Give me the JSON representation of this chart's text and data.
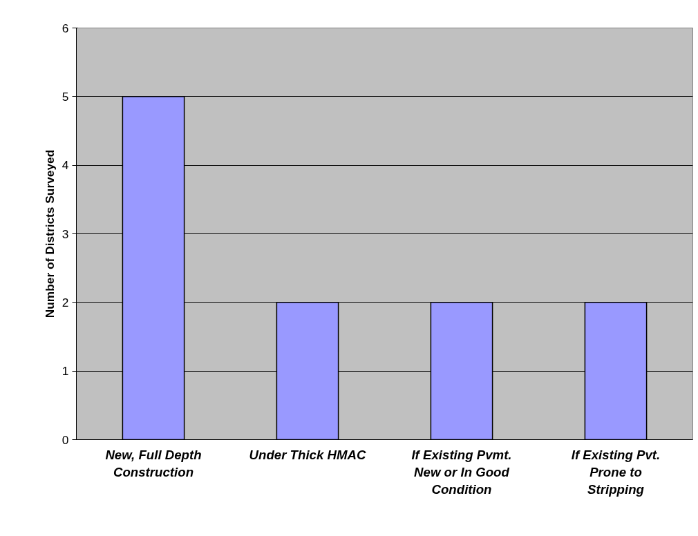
{
  "chart_data": {
    "type": "bar",
    "ylabel": "Number of Districts Surveyed",
    "categories": [
      "New, Full Depth Construction",
      "Under Thick HMAC",
      "If Existing Pvmt. New or In Good Condition",
      "If Existing Pvt. Prone to Stripping"
    ],
    "values": [
      5,
      2,
      2,
      2
    ],
    "color": "#9999ff",
    "ylim": [
      0,
      6
    ],
    "yticks": [
      0,
      1,
      2,
      3,
      4,
      5,
      6
    ],
    "grid": "y"
  }
}
